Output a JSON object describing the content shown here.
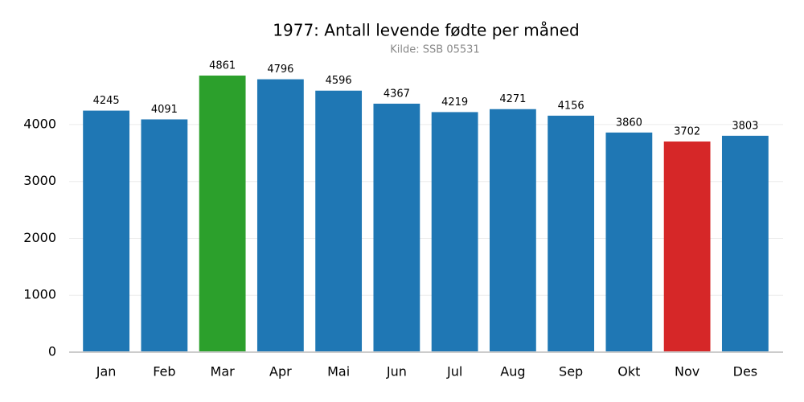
{
  "chart_data": {
    "type": "bar",
    "title": "1977: Antall levende fødte per måned",
    "subtitle": "Kilde: SSB 05531",
    "categories": [
      "Jan",
      "Feb",
      "Mar",
      "Apr",
      "Mai",
      "Jun",
      "Jul",
      "Aug",
      "Sep",
      "Okt",
      "Nov",
      "Des"
    ],
    "values": [
      4245,
      4091,
      4861,
      4796,
      4596,
      4367,
      4219,
      4271,
      4156,
      3860,
      3702,
      3803
    ],
    "colors": [
      "#1f77b4",
      "#1f77b4",
      "#2ca02c",
      "#1f77b4",
      "#1f77b4",
      "#1f77b4",
      "#1f77b4",
      "#1f77b4",
      "#1f77b4",
      "#1f77b4",
      "#d62728",
      "#1f77b4"
    ],
    "ylim": [
      0,
      5200
    ],
    "yticks": [
      0,
      1000,
      2000,
      3000,
      4000
    ],
    "grid": true
  }
}
